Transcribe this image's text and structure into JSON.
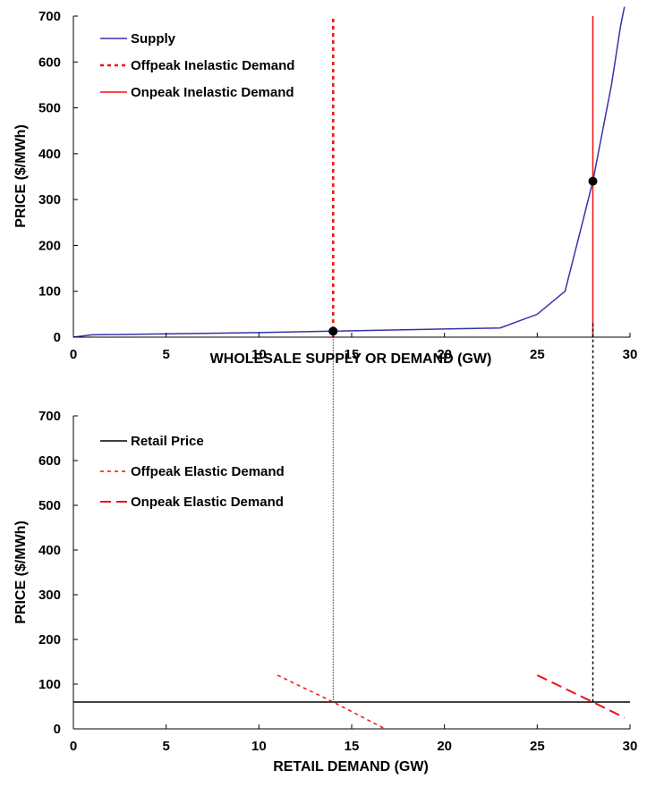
{
  "chart_data": [
    {
      "type": "line",
      "xlabel": "WHOLESALE SUPPLY OR DEMAND (GW)",
      "ylabel": "PRICE ($/MWh)",
      "xlim": [
        0,
        30
      ],
      "ylim": [
        0,
        700
      ],
      "x_ticks": [
        "0",
        "5",
        "10",
        "15",
        "20",
        "25",
        "30"
      ],
      "y_ticks": [
        "0",
        "100",
        "200",
        "300",
        "400",
        "500",
        "600",
        "700"
      ],
      "grid": false,
      "legend": "top-left",
      "series": [
        {
          "name": "Supply",
          "style": "solid",
          "color": "#3333aa",
          "points": [
            [
              0,
              0
            ],
            [
              1,
              5
            ],
            [
              10,
              10
            ],
            [
              14,
              13
            ],
            [
              23,
              20
            ],
            [
              25,
              50
            ],
            [
              26.5,
              100
            ],
            [
              27.5,
              260
            ],
            [
              28,
              340
            ],
            [
              29,
              550
            ],
            [
              29.5,
              680
            ],
            [
              29.7,
              720
            ]
          ]
        },
        {
          "name": "Offpeak Inelastic Demand",
          "style": "dotted",
          "color": "#ee1111",
          "points": [
            [
              14,
              0
            ],
            [
              14,
              700
            ]
          ]
        },
        {
          "name": "Onpeak Inelastic Demand",
          "style": "solid",
          "color": "#ee1111",
          "points": [
            [
              28,
              0
            ],
            [
              28,
              700
            ]
          ]
        }
      ],
      "markers": [
        [
          14,
          13
        ],
        [
          28,
          340
        ]
      ]
    },
    {
      "type": "line",
      "xlabel": "RETAIL DEMAND (GW)",
      "ylabel": "PRICE ($/MWh)",
      "xlim": [
        0,
        30
      ],
      "ylim": [
        0,
        700
      ],
      "x_ticks": [
        "0",
        "5",
        "10",
        "15",
        "20",
        "25",
        "30"
      ],
      "y_ticks": [
        "0",
        "100",
        "200",
        "300",
        "400",
        "500",
        "600",
        "700"
      ],
      "grid": false,
      "legend": "top-left",
      "series": [
        {
          "name": "Retail Price",
          "style": "solid",
          "color": "#000000",
          "points": [
            [
              0,
              60
            ],
            [
              30,
              60
            ]
          ]
        },
        {
          "name": "Offpeak Elastic Demand",
          "style": "dotted",
          "color": "#ee1111",
          "points": [
            [
              11,
              120
            ],
            [
              14,
              60
            ],
            [
              16.8,
              0
            ]
          ]
        },
        {
          "name": "Onpeak Elastic Demand",
          "style": "dashed",
          "color": "#ee1111",
          "points": [
            [
              25,
              120
            ],
            [
              28,
              60
            ],
            [
              29.7,
              25
            ]
          ]
        }
      ]
    }
  ]
}
